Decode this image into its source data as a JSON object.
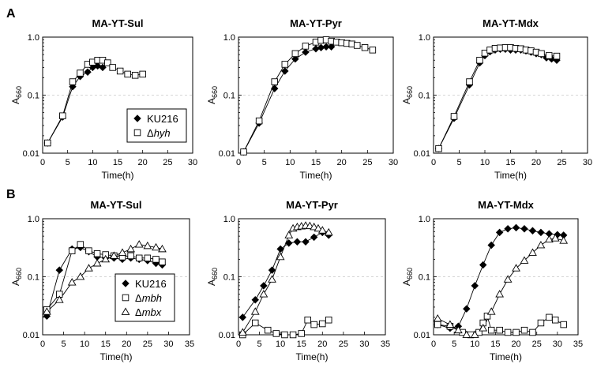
{
  "panel_labels": {
    "A": "A",
    "B": "B"
  },
  "legends": {
    "A": [
      {
        "marker": "diamond",
        "text": "KU216"
      },
      {
        "marker": "square",
        "prefix": "Δ",
        "italic": "hyh"
      }
    ],
    "B": [
      {
        "marker": "diamond",
        "text": "KU216"
      },
      {
        "marker": "square",
        "prefix": "Δ",
        "italic": "mbh"
      },
      {
        "marker": "triangle",
        "prefix": "Δ",
        "italic": "mbx"
      }
    ]
  },
  "chart_data": [
    {
      "type": "line",
      "panel": "A",
      "title": "MA-YT-Sul",
      "xlabel": "Time(h)",
      "ylabel": "A660",
      "ylabel_main": "A",
      "ylabel_sub": "660",
      "xlim": [
        0,
        30
      ],
      "xticks": [
        0,
        5,
        10,
        15,
        20,
        25,
        30
      ],
      "ylim": [
        0.01,
        1.0
      ],
      "yscale": "log",
      "ytick_labels": [
        "0.01",
        "0.1",
        "1.0"
      ],
      "grid": "dashed at 0.1",
      "series": [
        {
          "name": "KU216",
          "marker": "diamond",
          "x": [
            1,
            4,
            6,
            7.5,
            9,
            10,
            11,
            12
          ],
          "y": [
            0.015,
            0.042,
            0.14,
            0.21,
            0.25,
            0.3,
            0.32,
            0.3
          ]
        },
        {
          "name": "Δhyh",
          "marker": "square",
          "x": [
            1,
            4,
            6,
            7.5,
            9,
            10,
            11,
            12,
            13,
            14,
            15.5,
            17,
            18.5,
            20
          ],
          "y": [
            0.015,
            0.044,
            0.17,
            0.24,
            0.34,
            0.37,
            0.4,
            0.4,
            0.36,
            0.3,
            0.26,
            0.23,
            0.22,
            0.23
          ]
        }
      ]
    },
    {
      "type": "line",
      "panel": "A",
      "title": "MA-YT-Pyr",
      "xlabel": "Time(h)",
      "ylabel": "A660",
      "ylabel_main": "A",
      "ylabel_sub": "660",
      "xlim": [
        0,
        30
      ],
      "xticks": [
        0,
        5,
        10,
        15,
        20,
        25,
        30
      ],
      "ylim": [
        0.01,
        1.0
      ],
      "yscale": "log",
      "ytick_labels": [
        "0.01",
        "0.1",
        "1.0"
      ],
      "grid": "dashed at 0.1",
      "series": [
        {
          "name": "KU216",
          "marker": "diamond",
          "x": [
            1,
            4,
            7,
            9,
            11,
            13,
            15,
            16,
            17,
            18
          ],
          "y": [
            0.0105,
            0.033,
            0.13,
            0.26,
            0.42,
            0.55,
            0.63,
            0.66,
            0.68,
            0.68
          ]
        },
        {
          "name": "Δhyh",
          "marker": "square",
          "x": [
            1,
            4,
            7,
            9,
            11,
            13,
            15,
            16,
            17,
            18,
            19,
            20,
            21,
            22,
            23,
            24.5,
            26
          ],
          "y": [
            0.0105,
            0.036,
            0.17,
            0.34,
            0.52,
            0.7,
            0.82,
            0.88,
            0.9,
            0.85,
            0.82,
            0.8,
            0.78,
            0.76,
            0.72,
            0.66,
            0.6
          ]
        }
      ]
    },
    {
      "type": "line",
      "panel": "A",
      "title": "MA-YT-Mdx",
      "xlabel": "Time(h)",
      "ylabel": "A660",
      "ylabel_main": "A",
      "ylabel_sub": "660",
      "xlim": [
        0,
        30
      ],
      "xticks": [
        0,
        5,
        10,
        15,
        20,
        25,
        30
      ],
      "ylim": [
        0.01,
        1.0
      ],
      "yscale": "log",
      "ytick_labels": [
        "0.01",
        "0.1",
        "1.0"
      ],
      "grid": "dashed at 0.1",
      "series": [
        {
          "name": "KU216",
          "marker": "diamond",
          "x": [
            1,
            4,
            7,
            9,
            10,
            11,
            12,
            13,
            14,
            15,
            16,
            17,
            18,
            19,
            20,
            21,
            22,
            23,
            24
          ],
          "y": [
            0.012,
            0.04,
            0.15,
            0.36,
            0.48,
            0.56,
            0.6,
            0.62,
            0.62,
            0.6,
            0.6,
            0.6,
            0.58,
            0.55,
            0.52,
            0.5,
            0.44,
            0.42,
            0.4
          ]
        },
        {
          "name": "Δhyh",
          "marker": "square",
          "x": [
            1,
            4,
            7,
            9,
            10,
            11,
            12,
            13,
            14,
            15,
            16,
            17,
            18,
            19,
            20,
            21,
            22.5,
            24
          ],
          "y": [
            0.012,
            0.043,
            0.17,
            0.4,
            0.53,
            0.6,
            0.64,
            0.65,
            0.66,
            0.66,
            0.64,
            0.63,
            0.6,
            0.58,
            0.55,
            0.52,
            0.48,
            0.47
          ]
        }
      ]
    },
    {
      "type": "line",
      "panel": "B",
      "title": "MA-YT-Sul",
      "xlabel": "Time(h)",
      "ylabel": "A660",
      "ylabel_main": "A",
      "ylabel_sub": "660",
      "xlim": [
        0,
        35
      ],
      "xticks": [
        0,
        5,
        10,
        15,
        20,
        25,
        30,
        35
      ],
      "ylim": [
        0.01,
        1.0
      ],
      "yscale": "log",
      "ytick_labels": [
        "0.01",
        "0.1",
        "1.0"
      ],
      "grid": "dashed at 0.1",
      "series": [
        {
          "name": "KU216",
          "marker": "diamond",
          "x": [
            1,
            4,
            7,
            9,
            11,
            13,
            15,
            17,
            19,
            21,
            23,
            25,
            27,
            28.5
          ],
          "y": [
            0.021,
            0.13,
            0.3,
            0.32,
            0.27,
            0.22,
            0.21,
            0.21,
            0.2,
            0.21,
            0.2,
            0.19,
            0.17,
            0.16
          ]
        },
        {
          "name": "Δmbh",
          "marker": "square",
          "x": [
            1,
            4,
            7,
            9,
            11,
            13,
            15,
            17,
            19,
            21,
            23,
            25,
            27,
            28.5
          ],
          "y": [
            0.027,
            0.05,
            0.28,
            0.36,
            0.28,
            0.25,
            0.24,
            0.23,
            0.22,
            0.23,
            0.21,
            0.21,
            0.2,
            0.18
          ]
        },
        {
          "name": "Δmbx",
          "marker": "triangle",
          "x": [
            1,
            4,
            7,
            9,
            11,
            13,
            15,
            17,
            19,
            21,
            23,
            25,
            27,
            28.5
          ],
          "y": [
            0.025,
            0.04,
            0.08,
            0.1,
            0.14,
            0.17,
            0.2,
            0.23,
            0.26,
            0.3,
            0.36,
            0.34,
            0.32,
            0.3
          ]
        }
      ]
    },
    {
      "type": "line",
      "panel": "B",
      "title": "MA-YT-Pyr",
      "xlabel": "Time(h)",
      "ylabel": "A660",
      "ylabel_main": "A",
      "ylabel_sub": "660",
      "xlim": [
        0,
        35
      ],
      "xticks": [
        0,
        5,
        10,
        15,
        20,
        25,
        30,
        35
      ],
      "ylim": [
        0.01,
        1.0
      ],
      "yscale": "log",
      "ytick_labels": [
        "0.01",
        "0.1",
        "1.0"
      ],
      "grid": "dashed at 0.1",
      "series": [
        {
          "name": "KU216",
          "marker": "diamond",
          "x": [
            1,
            4,
            6,
            8,
            10,
            12,
            14,
            16,
            18,
            20,
            21.5
          ],
          "y": [
            0.02,
            0.04,
            0.07,
            0.13,
            0.3,
            0.38,
            0.4,
            0.4,
            0.48,
            0.58,
            0.52
          ]
        },
        {
          "name": "Δmbh",
          "marker": "square",
          "x": [
            1,
            4,
            7,
            9,
            11,
            13,
            15,
            16.5,
            18,
            20,
            21.5
          ],
          "y": [
            0.01,
            0.016,
            0.012,
            0.0105,
            0.01,
            0.01,
            0.0105,
            0.018,
            0.015,
            0.0155,
            0.018
          ]
        },
        {
          "name": "Δmbx",
          "marker": "triangle",
          "x": [
            1,
            4,
            6,
            8,
            10,
            12,
            13,
            14,
            15,
            16,
            17,
            18,
            19,
            20,
            21.5
          ],
          "y": [
            0.011,
            0.025,
            0.05,
            0.09,
            0.22,
            0.52,
            0.68,
            0.72,
            0.74,
            0.76,
            0.75,
            0.72,
            0.68,
            0.63,
            0.58
          ]
        }
      ]
    },
    {
      "type": "line",
      "panel": "B",
      "title": "MA-YT-Mdx",
      "xlabel": "Time(h)",
      "ylabel": "A660",
      "ylabel_main": "A",
      "ylabel_sub": "660",
      "xlim": [
        0,
        35
      ],
      "xticks": [
        0,
        5,
        10,
        15,
        20,
        25,
        30,
        35
      ],
      "ylim": [
        0.01,
        1.0
      ],
      "yscale": "log",
      "ytick_labels": [
        "0.01",
        "0.1",
        "1.0"
      ],
      "grid": "dashed at 0.1",
      "series": [
        {
          "name": "KU216",
          "marker": "diamond",
          "x": [
            1,
            4,
            6,
            8,
            10,
            12,
            14,
            16,
            18,
            20,
            22,
            24,
            26,
            28,
            30,
            31.5
          ],
          "y": [
            0.015,
            0.013,
            0.014,
            0.028,
            0.07,
            0.16,
            0.35,
            0.58,
            0.67,
            0.7,
            0.67,
            0.62,
            0.58,
            0.55,
            0.53,
            0.52
          ]
        },
        {
          "name": "Δmbh",
          "marker": "square",
          "x": [
            1,
            4,
            7,
            9,
            11,
            12,
            13,
            14,
            16,
            18,
            20,
            22,
            24,
            26,
            28,
            29.5,
            31.5
          ],
          "y": [
            0.015,
            0.014,
            0.011,
            0.01,
            0.011,
            0.016,
            0.021,
            0.012,
            0.012,
            0.011,
            0.011,
            0.012,
            0.011,
            0.016,
            0.02,
            0.018,
            0.015
          ]
        },
        {
          "name": "Δmbx",
          "marker": "triangle",
          "x": [
            1,
            4,
            6,
            8,
            10,
            12,
            14,
            16,
            18,
            20,
            22,
            24,
            26,
            28,
            29.5,
            31.5
          ],
          "y": [
            0.019,
            0.015,
            0.012,
            0.01,
            0.01,
            0.013,
            0.025,
            0.05,
            0.09,
            0.14,
            0.19,
            0.26,
            0.35,
            0.44,
            0.46,
            0.42
          ]
        }
      ]
    }
  ]
}
